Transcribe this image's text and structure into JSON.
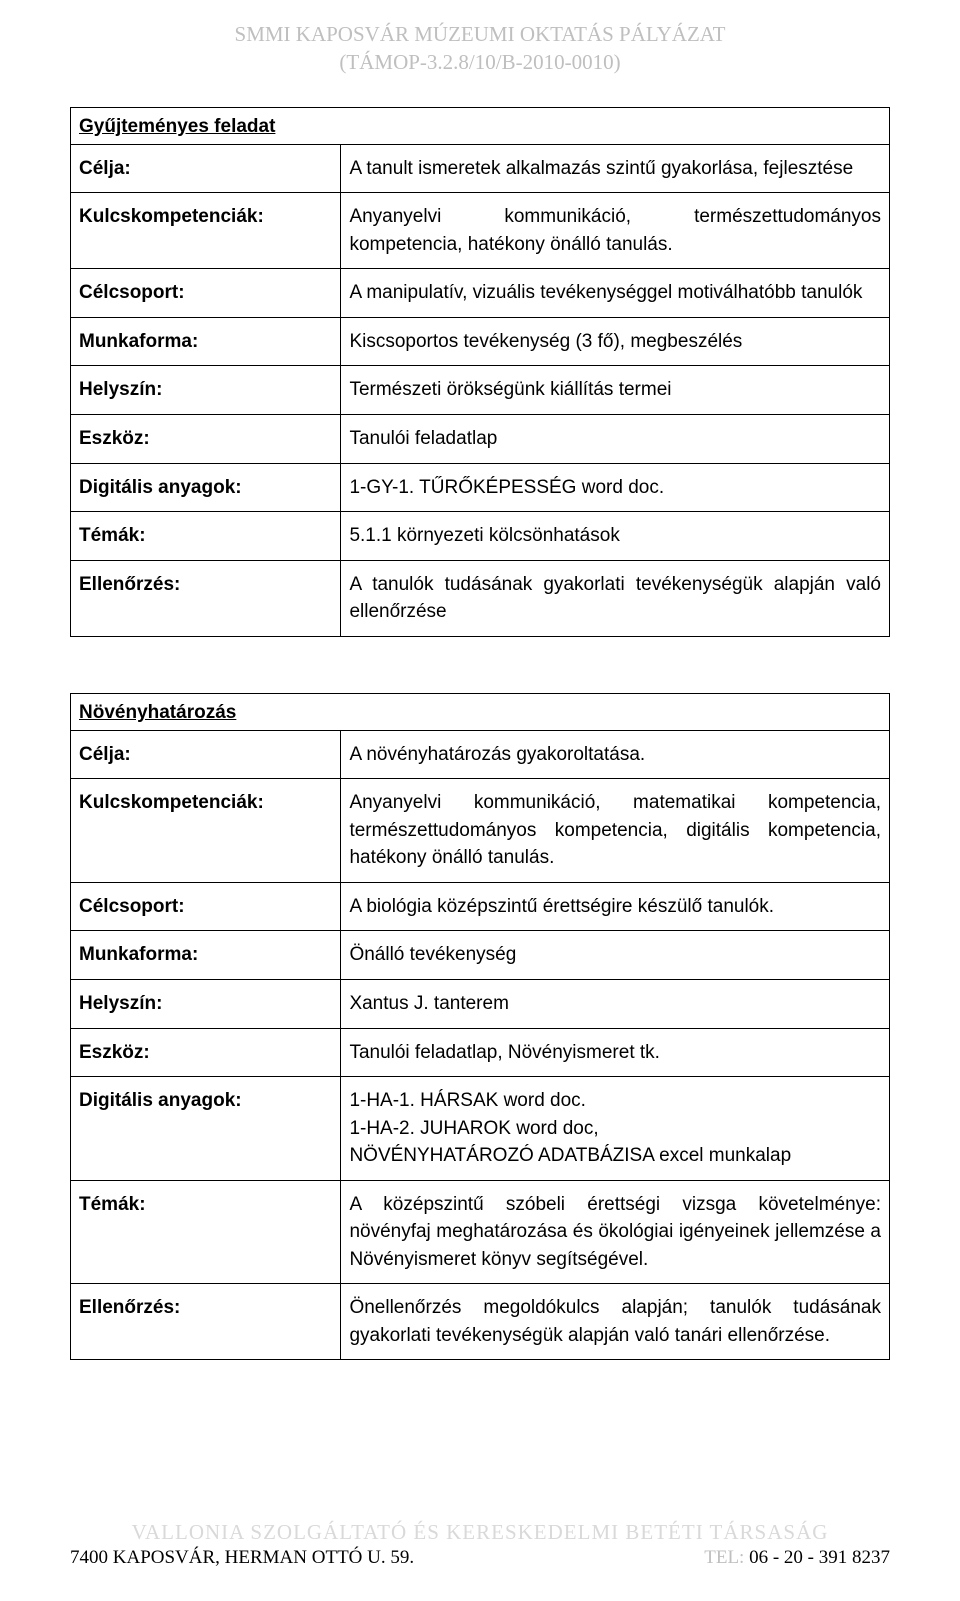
{
  "header": {
    "line1": "SMMI KAPOSVÁR MÚZEUMI OKTATÁS PÁLYÁZAT",
    "line2": "(TÁMOP-3.2.8/10/B-2010-0010)"
  },
  "block1": {
    "title": "Gyűjteményes feladat",
    "rows": [
      {
        "label": "Célja:",
        "value": "A tanult ismeretek alkalmazás szintű gyakorlása, fejlesztése"
      },
      {
        "label": "Kulcskompetenciák:",
        "value": "Anyanyelvi kommunikáció, természettudományos kompetencia, hatékony önálló tanulás."
      },
      {
        "label": "Célcsoport:",
        "value": "A manipulatív, vizuális tevékenységgel motiválhatóbb tanulók"
      },
      {
        "label": "Munkaforma:",
        "value": "Kiscsoportos tevékenység (3 fő), megbeszélés"
      },
      {
        "label": "Helyszín:",
        "value": "Természeti örökségünk kiállítás termei"
      },
      {
        "label": "Eszköz:",
        "value": "Tanulói feladatlap"
      },
      {
        "label": "Digitális anyagok:",
        "value": "1-GY-1. TŰRŐKÉPESSÉG word doc."
      },
      {
        "label": "Témák:",
        "value": "5.1.1 környezeti kölcsönhatások"
      },
      {
        "label": "Ellenőrzés:",
        "value": "A tanulók tudásának gyakorlati tevékenységük alapján való ellenőrzése"
      }
    ]
  },
  "block2": {
    "title": "Növényhatározás",
    "rows": [
      {
        "label": "Célja:",
        "value": "A növényhatározás gyakoroltatása."
      },
      {
        "label": "Kulcskompetenciák:",
        "value": "Anyanyelvi kommunikáció, matematikai kompetencia, természettudományos kompetencia, digitális kompetencia, hatékony  önálló tanulás."
      },
      {
        "label": "Célcsoport:",
        "value": "A biológia középszintű érettségire készülő tanulók."
      },
      {
        "label": "Munkaforma:",
        "value": "Önálló tevékenység"
      },
      {
        "label": "Helyszín:",
        "value": "Xantus J. tanterem"
      },
      {
        "label": "Eszköz:",
        "value": "Tanulói feladatlap, Növényismeret tk."
      },
      {
        "label": "Digitális anyagok:",
        "value": "1-HA-1. HÁRSAK word doc.\n1-HA-2. JUHAROK word doc,\nNÖVÉNYHATÁROZÓ ADATBÁZISA excel munkalap"
      },
      {
        "label": "Témák:",
        "value": "A középszintű szóbeli érettségi vizsga követelménye: növényfaj meghatározása és ökológiai igényeinek jellemzése a Növényismeret könyv segítségével."
      },
      {
        "label": "Ellenőrzés:",
        "value": "Önellenőrzés megoldókulcs alapján; tanulók tudásának gyakorlati tevékenységük alapján való tanári ellenőrzése."
      }
    ]
  },
  "footer": {
    "company": "VALLONIA   SZOLGÁLTATÓ ÉS KERESKEDELMI BETÉTI TÁRSASÁG",
    "address": "7400 KAPOSVÁR, HERMAN OTTÓ U. 59.",
    "tel_label": "TEL:",
    "tel_number": " 06 - 20 - 391 8237"
  }
}
